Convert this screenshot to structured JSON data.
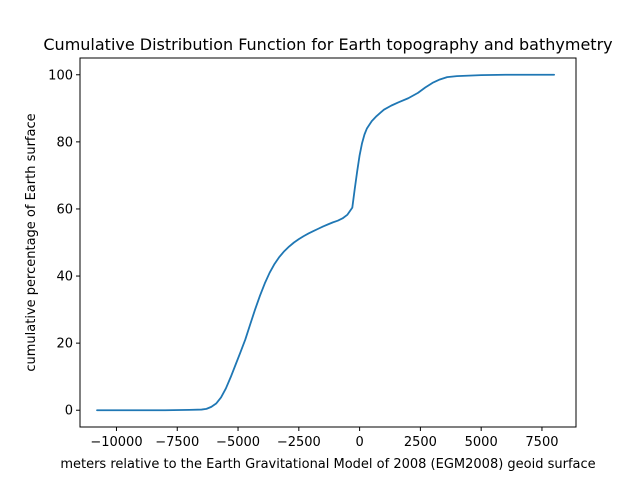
{
  "chart_data": {
    "type": "line",
    "title": "Cumulative Distribution Function for Earth topography and bathymetry",
    "xlabel": "meters relative to the Earth Gravitational Model of 2008 (EGM2008) geoid surface",
    "ylabel": "cumulative percentage of Earth surface",
    "xlim": [
      -11500,
      8900
    ],
    "ylim": [
      -5,
      105
    ],
    "xticks": [
      -10000,
      -7500,
      -5000,
      -2500,
      0,
      2500,
      5000,
      7500
    ],
    "xtick_labels": [
      "−10000",
      "−7500",
      "−5000",
      "−2500",
      "0",
      "2500",
      "5000",
      "7500"
    ],
    "yticks": [
      0,
      20,
      40,
      60,
      80,
      100
    ],
    "ytick_labels": [
      "0",
      "20",
      "40",
      "60",
      "80",
      "100"
    ],
    "grid": false,
    "legend": "none",
    "series_color": "#1f77b4",
    "series": [
      {
        "x": [
          -10800,
          -10000,
          -9000,
          -8000,
          -7000,
          -6500,
          -6300,
          -6100,
          -5900,
          -5700,
          -5500,
          -5300,
          -5100,
          -4900,
          -4700,
          -4500,
          -4300,
          -4100,
          -3900,
          -3700,
          -3500,
          -3300,
          -3100,
          -2900,
          -2700,
          -2500,
          -2300,
          -2100,
          -1900,
          -1700,
          -1500,
          -1300,
          -1100,
          -900,
          -700,
          -500,
          -300,
          -200,
          -100,
          0,
          100,
          200,
          300,
          500,
          700,
          1000,
          1300,
          1600,
          2000,
          2400,
          2700,
          3000,
          3300,
          3600,
          4000,
          5000,
          6000,
          7000,
          8000
        ],
        "y": [
          0,
          0,
          0,
          0,
          0.1,
          0.2,
          0.4,
          1.0,
          2.0,
          3.8,
          6.5,
          9.9,
          13.6,
          17.3,
          21.1,
          25.6,
          30.0,
          34.1,
          37.8,
          41.0,
          43.6,
          45.7,
          47.4,
          48.8,
          50.0,
          51.0,
          51.9,
          52.7,
          53.4,
          54.1,
          54.8,
          55.4,
          56.0,
          56.5,
          57.2,
          58.3,
          60.4,
          66.0,
          71.2,
          76.0,
          79.6,
          82.2,
          84.0,
          86.2,
          87.7,
          89.6,
          90.8,
          91.8,
          93.0,
          94.6,
          96.2,
          97.6,
          98.6,
          99.3,
          99.6,
          99.9,
          100,
          100,
          100
        ]
      }
    ]
  }
}
